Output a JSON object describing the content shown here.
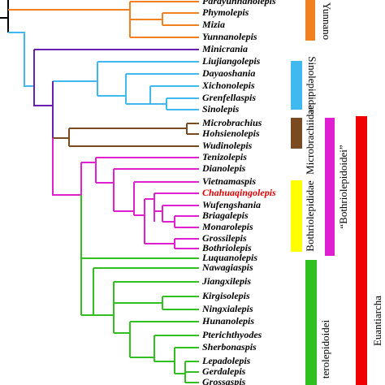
{
  "taxa": [
    "Parayunnanolepis",
    "Phymolepis",
    "Mizia",
    "Yunnanolepis",
    "Minicrania",
    "Liujiangolepis",
    "Dayaoshania",
    "Xichonolepis",
    "Grenfellaspis",
    "Sinolepis",
    "Microbrachius",
    "Hohsienolepis",
    "Wudinolepis",
    "Tenizolepis",
    "Dianolepis",
    "Vietnamaspis",
    "Chahuaqingolepis",
    "Wufengshania",
    "Briagalepis",
    "Monarolepis",
    "Grossilepis",
    "Bothriolepis",
    "Luquanolepis",
    "Nawagiaspis",
    "Jiangxilepis",
    "Kirgisolepis",
    "Ningxialepis",
    "Hunanolepis",
    "Pterichthyodes",
    "Sherbonaspis",
    "Lepadolepis",
    "Gerdalepis",
    "Grossaspis"
  ],
  "groups": {
    "yunnanolepidoidei": "Yunnano",
    "sinolepididae": "Sinolepididae",
    "microbrachiidae": "Microbrachiidae",
    "bothriolepididae": "Bothriolepididae",
    "bothriolepidoidei": "“Bothriolepidoidei”",
    "asterolepidoidei": "terolepidoidei",
    "euantiarcha": "Euantiarcha"
  }
}
